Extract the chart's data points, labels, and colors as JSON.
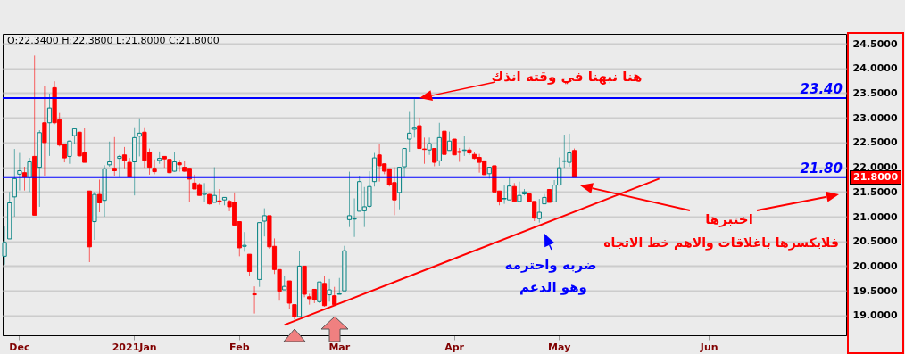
{
  "chart_data": {
    "type": "candlestick",
    "categories": [
      null,
      null,
      null,
      "Dec",
      null,
      null,
      null,
      null,
      null,
      null,
      null,
      null,
      null,
      null,
      null,
      null,
      null,
      null,
      null,
      null,
      null,
      null,
      null,
      null,
      null,
      null,
      "2021Jan",
      null,
      null,
      null,
      null,
      null,
      null,
      null,
      null,
      null,
      null,
      null,
      null,
      null,
      null,
      null,
      null,
      null,
      null,
      null,
      null,
      "Feb",
      null,
      null,
      null,
      null,
      null,
      null,
      null,
      null,
      null,
      null,
      null,
      null,
      null,
      null,
      null,
      null,
      null,
      null,
      null,
      "Mar",
      null,
      null,
      null,
      null,
      null,
      null,
      null,
      null,
      null,
      null,
      null,
      null,
      null,
      null,
      null,
      null,
      null,
      null,
      null,
      null,
      null,
      null,
      "Apr",
      null,
      null,
      null,
      null,
      null,
      null,
      null,
      null,
      null,
      null,
      null,
      null,
      null,
      null,
      null,
      null,
      null,
      null,
      null,
      null,
      "May",
      null,
      null,
      null,
      null,
      null,
      null,
      null,
      null,
      null,
      null,
      null,
      null,
      null,
      null,
      null,
      null,
      null,
      null,
      null,
      null,
      null,
      null,
      null,
      null,
      null,
      null,
      null,
      null,
      null,
      "Jun",
      null,
      null,
      null,
      null,
      null,
      null,
      null,
      null,
      null,
      null,
      null,
      null,
      null,
      null,
      null,
      null,
      null,
      null,
      null,
      null,
      null,
      null,
      null,
      null,
      null,
      null,
      null
    ],
    "ohlc": [
      [
        20.2,
        20.8,
        20.03,
        20.48
      ],
      [
        20.55,
        21.5,
        20.55,
        21.28
      ],
      [
        21.4,
        22.37,
        21.0,
        21.77
      ],
      [
        21.86,
        22.29,
        21.53,
        21.93
      ],
      [
        21.89,
        22.01,
        21.53,
        21.81
      ],
      [
        21.8,
        22.19,
        21.5,
        22.11
      ],
      [
        22.22,
        24.26,
        21.03,
        21.03
      ],
      [
        22.0,
        22.75,
        21.2,
        22.7
      ],
      [
        22.9,
        23.64,
        21.83,
        22.5
      ],
      [
        22.9,
        23.49,
        22.23,
        23.2
      ],
      [
        23.61,
        23.74,
        22.87,
        22.9
      ],
      [
        22.96,
        23.1,
        22.42,
        22.45
      ],
      [
        22.47,
        22.48,
        22.1,
        22.19
      ],
      [
        22.22,
        22.54,
        22.07,
        22.53
      ],
      [
        22.64,
        22.79,
        22.48,
        22.78
      ],
      [
        22.71,
        22.72,
        22.22,
        22.23
      ],
      [
        22.29,
        22.8,
        22.1,
        22.1
      ],
      [
        21.52,
        21.52,
        20.08,
        20.39
      ],
      [
        20.9,
        21.5,
        20.53,
        21.45
      ],
      [
        21.45,
        21.75,
        21.09,
        21.28
      ],
      [
        21.33,
        22.04,
        21.0,
        21.97
      ],
      [
        22.05,
        22.52,
        22.01,
        22.11
      ],
      [
        21.98,
        22.61,
        21.83,
        21.93
      ],
      [
        22.18,
        22.25,
        21.81,
        22.22
      ],
      [
        22.25,
        22.41,
        21.98,
        22.14
      ],
      [
        22.1,
        22.19,
        21.81,
        21.81
      ],
      [
        22.11,
        22.81,
        21.43,
        22.6
      ],
      [
        22.63,
        22.99,
        22.22,
        22.69
      ],
      [
        22.71,
        22.81,
        21.99,
        22.14
      ],
      [
        22.3,
        22.38,
        21.85,
        22.0
      ],
      [
        21.98,
        22.16,
        21.86,
        21.91
      ],
      [
        22.14,
        22.32,
        22.07,
        22.18
      ],
      [
        22.22,
        22.22,
        21.99,
        22.17
      ],
      [
        22.16,
        22.17,
        21.88,
        21.89
      ],
      [
        21.92,
        22.31,
        21.91,
        22.11
      ],
      [
        22.09,
        22.15,
        21.91,
        22.05
      ],
      [
        22.0,
        22.13,
        21.91,
        21.92
      ],
      [
        21.98,
        21.98,
        21.3,
        21.76
      ],
      [
        21.68,
        21.85,
        21.56,
        21.56
      ],
      [
        21.65,
        21.68,
        21.43,
        21.43
      ],
      [
        21.45,
        21.68,
        21.3,
        21.47
      ],
      [
        21.45,
        21.46,
        21.24,
        21.26
      ],
      [
        21.29,
        22.0,
        21.29,
        21.43
      ],
      [
        21.32,
        21.56,
        21.24,
        21.3
      ],
      [
        21.34,
        21.39,
        21.23,
        21.39
      ],
      [
        21.31,
        21.34,
        21.11,
        21.2
      ],
      [
        21.29,
        21.49,
        20.83,
        20.83
      ],
      [
        20.9,
        20.9,
        20.2,
        20.37
      ],
      [
        20.4,
        20.69,
        20.29,
        20.42
      ],
      [
        20.24,
        20.24,
        19.8,
        19.89
      ],
      [
        19.44,
        19.59,
        19.04,
        19.42
      ],
      [
        19.73,
        20.88,
        19.58,
        20.88
      ],
      [
        20.91,
        21.17,
        20.6,
        21.02
      ],
      [
        21.02,
        21.02,
        20.35,
        20.39
      ],
      [
        20.4,
        20.56,
        19.84,
        19.93
      ],
      [
        19.93,
        19.93,
        19.3,
        19.49
      ],
      [
        19.52,
        19.81,
        19.52,
        19.59
      ],
      [
        19.7,
        19.7,
        19.13,
        19.25
      ],
      [
        19.22,
        19.22,
        18.92,
        18.97
      ],
      [
        18.98,
        20.3,
        18.98,
        20.0
      ],
      [
        20.0,
        20.0,
        19.37,
        19.43
      ],
      [
        19.38,
        19.44,
        19.22,
        19.34
      ],
      [
        19.53,
        19.53,
        19.25,
        19.32
      ],
      [
        19.28,
        19.68,
        19.25,
        19.68
      ],
      [
        19.65,
        19.8,
        19.18,
        19.2
      ],
      [
        19.42,
        19.74,
        19.28,
        19.52
      ],
      [
        19.4,
        19.58,
        19.22,
        19.22
      ],
      [
        19.43,
        19.76,
        19.43,
        19.44
      ],
      [
        19.5,
        20.41,
        19.5,
        20.31
      ],
      [
        20.94,
        21.91,
        20.79,
        21.02
      ],
      [
        20.95,
        21.37,
        20.59,
        20.96
      ],
      [
        21.11,
        21.83,
        21.11,
        21.71
      ],
      [
        21.12,
        21.6,
        20.79,
        21.2
      ],
      [
        21.21,
        21.92,
        21.18,
        21.61
      ],
      [
        21.71,
        22.29,
        21.61,
        22.19
      ],
      [
        22.25,
        22.48,
        21.71,
        22.03
      ],
      [
        22.07,
        22.07,
        21.86,
        21.92
      ],
      [
        21.97,
        21.97,
        21.61,
        21.65
      ],
      [
        21.69,
        22.0,
        21.03,
        21.34
      ],
      [
        21.49,
        22.0,
        21.15,
        22.0
      ],
      [
        22.01,
        22.39,
        21.79,
        22.38
      ],
      [
        22.57,
        23.12,
        22.31,
        22.69
      ],
      [
        22.77,
        23.38,
        22.6,
        22.81
      ],
      [
        22.84,
        23.0,
        22.38,
        22.38
      ],
      [
        22.37,
        22.6,
        22.07,
        22.36
      ],
      [
        22.35,
        22.6,
        22.25,
        22.48
      ],
      [
        22.38,
        22.38,
        22.02,
        22.1
      ],
      [
        22.13,
        22.9,
        22.03,
        22.6
      ],
      [
        22.73,
        22.73,
        22.26,
        22.26
      ],
      [
        22.34,
        22.72,
        22.34,
        22.53
      ],
      [
        22.57,
        22.57,
        22.25,
        22.25
      ],
      [
        22.32,
        22.39,
        22.11,
        22.3
      ],
      [
        22.34,
        22.63,
        22.23,
        22.35
      ],
      [
        22.35,
        22.4,
        22.25,
        22.29
      ],
      [
        22.26,
        22.3,
        22.16,
        22.18
      ],
      [
        22.2,
        22.27,
        21.89,
        22.1
      ],
      [
        22.13,
        22.13,
        21.85,
        21.85
      ],
      [
        21.87,
        22.01,
        21.77,
        22.0
      ],
      [
        22.03,
        22.04,
        21.5,
        21.5
      ],
      [
        21.52,
        21.52,
        21.23,
        21.31
      ],
      [
        21.36,
        21.65,
        21.26,
        21.37
      ],
      [
        21.34,
        21.79,
        21.34,
        21.62
      ],
      [
        21.61,
        21.68,
        21.31,
        21.31
      ],
      [
        21.31,
        21.71,
        21.31,
        21.43
      ],
      [
        21.46,
        21.56,
        21.43,
        21.5
      ],
      [
        21.46,
        21.46,
        21.3,
        21.3
      ],
      [
        21.31,
        21.31,
        20.91,
        20.97
      ],
      [
        20.96,
        21.36,
        20.88,
        21.09
      ],
      [
        21.26,
        21.46,
        21.26,
        21.39
      ],
      [
        21.55,
        21.56,
        21.29,
        21.29
      ],
      [
        21.3,
        21.74,
        21.3,
        21.64
      ],
      [
        21.64,
        22.2,
        21.64,
        21.99
      ],
      [
        22.12,
        22.66,
        21.99,
        22.13
      ],
      [
        22.1,
        22.68,
        22.01,
        22.29
      ],
      [
        22.34,
        22.38,
        21.8,
        21.8
      ],
      null,
      null,
      null,
      null,
      null,
      null,
      null,
      null,
      null,
      null,
      null,
      null,
      null,
      null,
      null,
      null,
      null,
      null,
      null,
      null,
      null,
      null,
      null,
      null,
      null,
      null,
      null,
      null,
      null,
      null,
      null,
      null,
      null,
      null,
      null,
      null,
      null,
      null,
      null,
      null,
      null,
      null,
      null,
      null,
      null,
      null,
      null,
      null,
      null,
      null,
      null,
      null,
      null,
      null
    ],
    "series": [
      {
        "type": "line",
        "color": "#ff0000",
        "values": [
          null,
          null,
          null,
          null,
          null,
          null,
          null,
          null,
          null,
          null,
          null,
          null,
          null,
          null,
          null,
          null,
          null,
          null,
          null,
          null,
          null,
          null,
          null,
          null,
          null,
          null,
          null,
          null,
          null,
          null,
          null,
          null,
          null,
          null,
          null,
          null,
          null,
          null,
          null,
          null,
          null,
          null,
          null,
          null,
          null,
          null,
          null,
          null,
          null,
          null,
          null,
          null,
          null,
          null,
          null,
          null,
          18.81,
          null,
          null,
          null,
          null,
          null,
          null,
          null,
          null,
          null,
          null,
          null,
          null,
          null,
          null,
          null,
          null,
          null,
          null,
          null,
          null,
          null,
          null,
          null,
          null,
          null,
          null,
          null,
          null,
          null,
          null,
          null,
          null,
          null,
          null,
          null,
          null,
          null,
          null,
          null,
          null,
          null,
          null,
          null,
          null,
          null,
          null,
          null,
          null,
          null,
          null,
          null,
          null,
          null,
          null,
          null,
          null,
          null,
          null,
          null,
          null,
          null,
          null,
          null,
          null,
          null,
          null,
          null,
          null,
          null,
          null,
          null,
          null,
          null,
          null,
          21.77,
          null,
          null,
          null,
          null,
          null,
          null,
          null,
          null,
          null,
          null,
          null,
          null,
          null,
          null,
          null,
          null,
          null,
          null,
          null,
          null,
          null,
          null,
          null,
          null,
          null,
          null,
          null,
          null,
          null,
          null,
          null,
          null,
          null,
          null,
          null,
          null,
          null
        ]
      }
    ],
    "ylim": [
      18.6,
      24.7
    ],
    "yticks": [
      {
        "value": 19,
        "label": "19.0000"
      },
      {
        "value": 19.5,
        "label": "19.5000"
      },
      {
        "value": 20,
        "label": "20.0000"
      },
      {
        "value": 20.5,
        "label": "20.5000"
      },
      {
        "value": 21,
        "label": "21.0000"
      },
      {
        "value": 21.5,
        "label": "21.5000"
      },
      {
        "value": 22,
        "label": "22.0000"
      },
      {
        "value": 22.5,
        "label": "22.5000"
      },
      {
        "value": 23,
        "label": "23.0000"
      },
      {
        "value": 23.5,
        "label": "23.5000"
      },
      {
        "value": 24,
        "label": "24.0000"
      },
      {
        "value": 24.5,
        "label": "24.5000"
      }
    ],
    "grid": "y",
    "ref_lines": [
      {
        "axis": "y",
        "value": 23.4,
        "label": "23.40",
        "color": "#0000ff"
      },
      {
        "axis": "y",
        "value": 21.8,
        "label": "21.80",
        "color": "#0000ff"
      }
    ],
    "annotations": [
      "O:22.3400  H:22.3800  L:21.8000  C:21.8000",
      {
        "text": "هنا نبهنا في وقته انذك",
        "y": 23.4
      },
      "اختبرها",
      "فلايكسرها باغلاقات والاهم خط الاتجاه",
      "ضربه واحترمه",
      "وهو الدعم",
      "21.8000"
    ]
  }
}
